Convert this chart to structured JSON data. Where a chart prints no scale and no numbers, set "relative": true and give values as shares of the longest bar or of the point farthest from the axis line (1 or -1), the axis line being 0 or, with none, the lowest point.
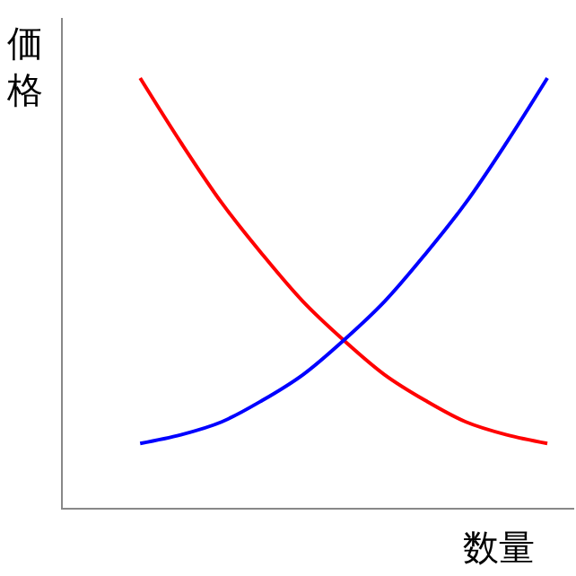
{
  "chart_data": {
    "type": "line",
    "relative": true,
    "xlabel": "数量",
    "ylabel": "価格",
    "categories": [
      null,
      null,
      null,
      null,
      null,
      null,
      null,
      null,
      null,
      null,
      null
    ],
    "series": [
      {
        "color": "#ff0000",
        "values": [
          1,
          0.85,
          0.71,
          0.59,
          0.48,
          0.39,
          0.31,
          0.25,
          0.2,
          0.17,
          0.15
        ]
      },
      {
        "color": "#0000ff",
        "values": [
          0.15,
          0.17,
          0.2,
          0.25,
          0.31,
          0.39,
          0.48,
          0.59,
          0.71,
          0.85,
          1
        ]
      }
    ],
    "marker": "none",
    "line_style": "solid"
  }
}
